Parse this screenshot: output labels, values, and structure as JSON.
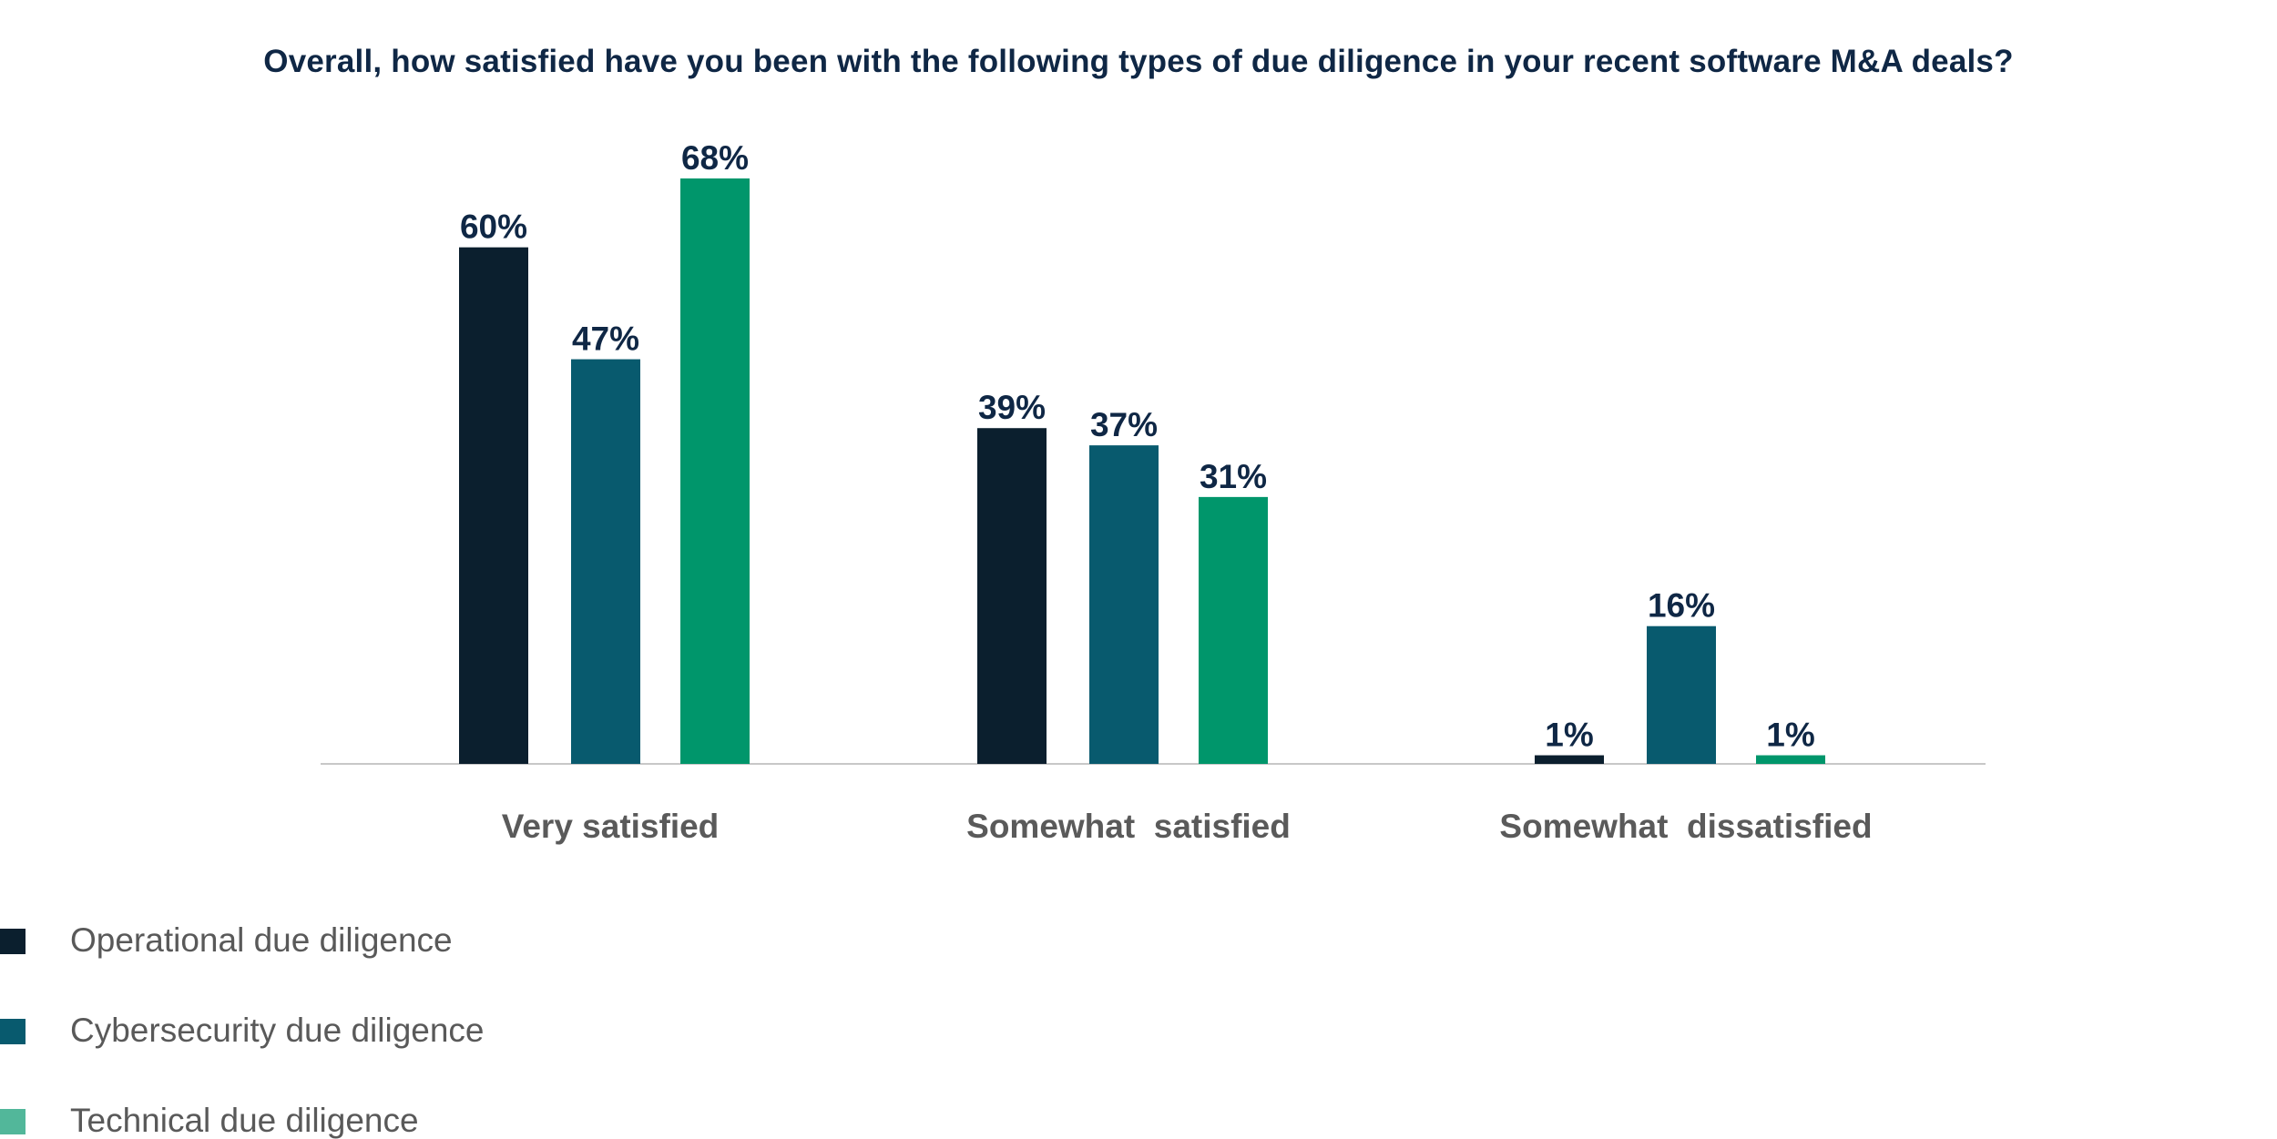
{
  "chart_data": {
    "type": "bar",
    "title": "Overall, how satisfied have you been with the following types of due diligence in your recent software M&A deals?",
    "categories": [
      "Very satisfied",
      "Somewhat  satisfied",
      "Somewhat  dissatisfied"
    ],
    "series": [
      {
        "name": "Operational due diligence",
        "values": [
          60,
          39,
          1
        ],
        "color": "#0b1f2e"
      },
      {
        "name": "Cybersecurity due diligence",
        "values": [
          47,
          37,
          16
        ],
        "color": "#085a6e"
      },
      {
        "name": "Technical due diligence",
        "values": [
          68,
          31,
          1
        ],
        "color": "#00966b"
      }
    ],
    "legend_colors": [
      "#0b1f2e",
      "#085a6e",
      "#52b79a"
    ],
    "value_suffix": "%",
    "ylim": [
      0,
      68
    ],
    "grid": false,
    "legend_position": "bottom-left",
    "xlabel": "",
    "ylabel": ""
  }
}
